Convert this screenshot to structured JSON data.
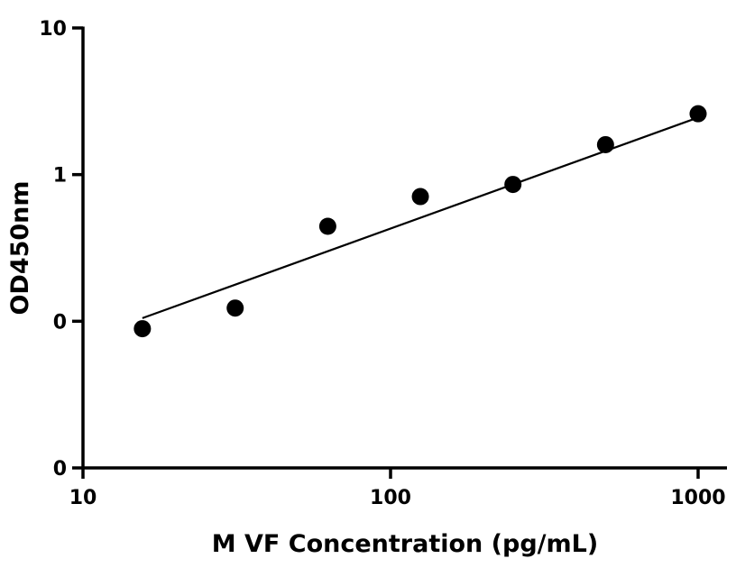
{
  "chart_data": {
    "type": "scatter",
    "title": "",
    "xlabel": "M VF Concentration (pg/mL)",
    "ylabel": "OD450nm",
    "x_scale": "log",
    "y_scale": "log",
    "xlim": [
      10,
      1000
    ],
    "ylim": [
      0.01,
      10
    ],
    "x_ticks": [
      10,
      100,
      1000
    ],
    "x_tick_labels": [
      "10",
      "100",
      "1000"
    ],
    "y_ticks": [
      0.01,
      0.1,
      1,
      10
    ],
    "y_tick_labels": [
      "0",
      "0",
      "1",
      "10"
    ],
    "grid": false,
    "legend": "none",
    "series": [
      {
        "x": [
          15.6,
          31.25,
          62.5,
          125,
          250,
          500,
          1000
        ],
        "y": [
          0.089,
          0.123,
          0.444,
          0.708,
          0.857,
          1.6,
          2.6
        ],
        "color": "#000000"
      }
    ],
    "fit_line": {
      "x": [
        15.6,
        1000
      ],
      "y": [
        0.105,
        2.45
      ]
    }
  }
}
